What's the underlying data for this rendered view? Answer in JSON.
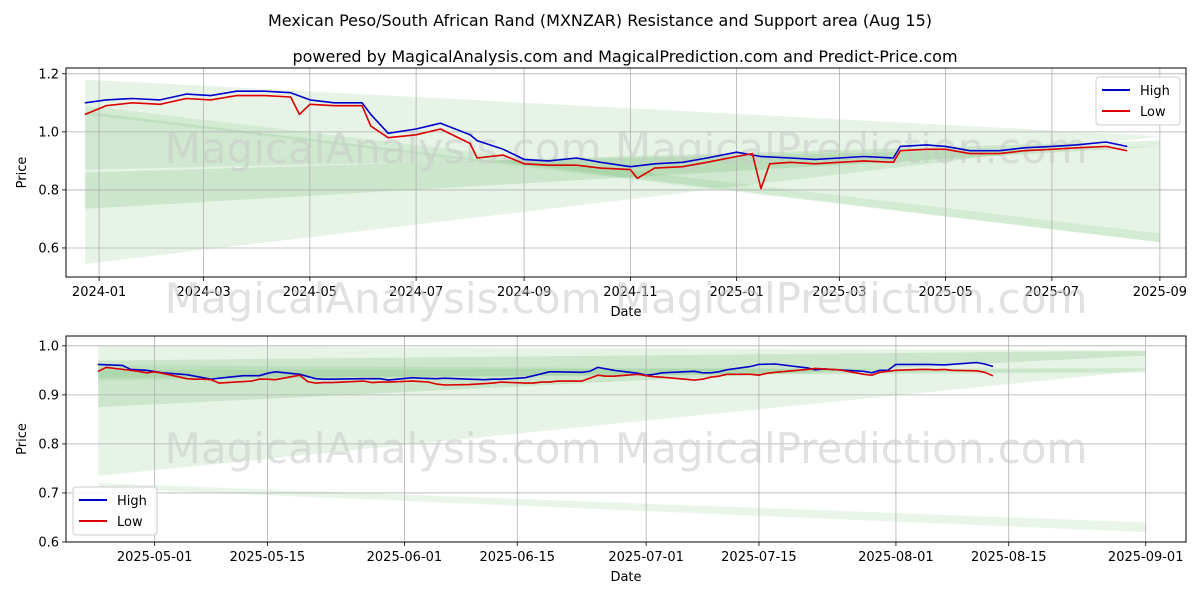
{
  "title": "Mexican Peso/South African Rand (MXNZAR) Resistance and Support area (Aug 15)",
  "subtitle": "powered by MagicalAnalysis.com and MagicalPrediction.com and Predict-Price.com",
  "watermark": "MagicalAnalysis.com    MagicalPrediction.com",
  "colors": {
    "high": "#0000cc",
    "low": "#dd0000",
    "band": "#2e9e2e",
    "grid": "#b0b0b0",
    "watermark": "#c8c8c8"
  },
  "chart_data": [
    {
      "type": "line",
      "title": "",
      "xlabel": "Date",
      "ylabel": "Price",
      "x_range": [
        "2023-12-13",
        "2025-09-16"
      ],
      "ylim": [
        0.5,
        1.22
      ],
      "x_ticks": [
        "2024-01",
        "2024-03",
        "2024-05",
        "2024-07",
        "2024-09",
        "2024-11",
        "2025-01",
        "2025-03",
        "2025-05",
        "2025-07",
        "2025-09"
      ],
      "x_tick_dates": [
        "2024-01-01",
        "2024-03-01",
        "2024-05-01",
        "2024-07-01",
        "2024-09-01",
        "2024-11-01",
        "2025-01-01",
        "2025-03-01",
        "2025-05-01",
        "2025-07-01",
        "2025-09-01"
      ],
      "y_ticks": [
        0.6,
        0.8,
        1.0,
        1.2
      ],
      "y_tick_labels": [
        "0.6",
        "0.8",
        "1.0",
        "1.2"
      ],
      "grid": true,
      "legend": {
        "position": "top-right",
        "entries": [
          "High",
          "Low"
        ]
      },
      "bands": [
        {
          "x0": "2023-12-24",
          "x1": "2025-09-01",
          "y_top": [
            1.18,
            0.985
          ],
          "y_bot": [
            0.545,
            0.985
          ],
          "opacity": 0.12
        },
        {
          "x0": "2023-12-24",
          "x1": "2025-09-01",
          "y_top": [
            1.07,
            0.62
          ],
          "y_bot": [
            0.87,
            0.95
          ],
          "opacity": 0.12
        },
        {
          "x0": "2023-12-24",
          "x1": "2025-09-01",
          "y_top": [
            0.86,
            0.97
          ],
          "y_bot": [
            0.735,
            0.95
          ],
          "opacity": 0.14
        },
        {
          "x0": "2023-12-24",
          "x1": "2025-09-01",
          "y_top": [
            1.09,
            0.65
          ],
          "y_bot": [
            1.06,
            0.62
          ],
          "opacity": 0.1
        }
      ],
      "series": [
        {
          "name": "High",
          "x": [
            "2023-12-24",
            "2024-01-05",
            "2024-01-20",
            "2024-02-05",
            "2024-02-20",
            "2024-03-05",
            "2024-03-20",
            "2024-04-05",
            "2024-04-20",
            "2024-05-01",
            "2024-05-15",
            "2024-05-31",
            "2024-06-05",
            "2024-06-15",
            "2024-07-01",
            "2024-07-15",
            "2024-08-01",
            "2024-08-05",
            "2024-08-20",
            "2024-09-01",
            "2024-09-15",
            "2024-10-01",
            "2024-10-15",
            "2024-11-01",
            "2024-11-15",
            "2024-12-01",
            "2024-12-15",
            "2025-01-01",
            "2025-01-15",
            "2025-02-01",
            "2025-02-15",
            "2025-03-01",
            "2025-03-15",
            "2025-04-01",
            "2025-04-05",
            "2025-04-20",
            "2025-05-01",
            "2025-05-15",
            "2025-06-01",
            "2025-06-15",
            "2025-07-01",
            "2025-07-15",
            "2025-08-01",
            "2025-08-13"
          ],
          "values": [
            1.1,
            1.11,
            1.115,
            1.11,
            1.13,
            1.125,
            1.14,
            1.14,
            1.135,
            1.11,
            1.1,
            1.1,
            1.06,
            0.995,
            1.01,
            1.03,
            0.99,
            0.97,
            0.94,
            0.905,
            0.9,
            0.91,
            0.895,
            0.88,
            0.89,
            0.895,
            0.91,
            0.93,
            0.915,
            0.91,
            0.905,
            0.91,
            0.915,
            0.91,
            0.95,
            0.955,
            0.95,
            0.935,
            0.935,
            0.945,
            0.95,
            0.955,
            0.965,
            0.95
          ]
        },
        {
          "name": "Low",
          "x": [
            "2023-12-24",
            "2024-01-05",
            "2024-01-20",
            "2024-02-05",
            "2024-02-20",
            "2024-03-05",
            "2024-03-20",
            "2024-04-05",
            "2024-04-20",
            "2024-04-25",
            "2024-05-01",
            "2024-05-15",
            "2024-05-31",
            "2024-06-05",
            "2024-06-15",
            "2024-07-01",
            "2024-07-15",
            "2024-08-01",
            "2024-08-05",
            "2024-08-20",
            "2024-09-01",
            "2024-09-15",
            "2024-10-01",
            "2024-10-15",
            "2024-11-01",
            "2024-11-05",
            "2024-11-15",
            "2024-12-01",
            "2024-12-15",
            "2025-01-01",
            "2025-01-10",
            "2025-01-15",
            "2025-01-20",
            "2025-02-01",
            "2025-02-15",
            "2025-03-01",
            "2025-03-15",
            "2025-04-01",
            "2025-04-05",
            "2025-04-20",
            "2025-05-01",
            "2025-05-15",
            "2025-06-01",
            "2025-06-15",
            "2025-07-01",
            "2025-07-15",
            "2025-08-01",
            "2025-08-13"
          ],
          "values": [
            1.06,
            1.09,
            1.1,
            1.095,
            1.115,
            1.11,
            1.125,
            1.125,
            1.12,
            1.06,
            1.095,
            1.09,
            1.09,
            1.02,
            0.98,
            0.99,
            1.01,
            0.96,
            0.91,
            0.92,
            0.89,
            0.885,
            0.885,
            0.875,
            0.87,
            0.84,
            0.875,
            0.88,
            0.895,
            0.915,
            0.925,
            0.805,
            0.89,
            0.895,
            0.89,
            0.895,
            0.9,
            0.895,
            0.935,
            0.94,
            0.94,
            0.925,
            0.925,
            0.935,
            0.94,
            0.945,
            0.95,
            0.935
          ]
        }
      ]
    },
    {
      "type": "line",
      "title": "",
      "xlabel": "Date",
      "ylabel": "Price",
      "x_range": [
        "2025-04-20",
        "2025-09-06"
      ],
      "ylim": [
        0.6,
        1.02
      ],
      "x_ticks": [
        "2025-05-01",
        "2025-05-15",
        "2025-06-01",
        "2025-06-15",
        "2025-07-01",
        "2025-07-15",
        "2025-08-01",
        "2025-08-15",
        "2025-09-01"
      ],
      "y_ticks": [
        0.6,
        0.7,
        0.8,
        0.9,
        1.0
      ],
      "y_tick_labels": [
        "0.6",
        "0.7",
        "0.8",
        "0.9",
        "1.0"
      ],
      "grid": true,
      "legend": {
        "position": "bottom-left",
        "entries": [
          "High",
          "Low"
        ]
      },
      "bands": [
        {
          "x0": "2025-04-24",
          "x1": "2025-09-01",
          "y_top": [
            1.0,
            0.99
          ],
          "y_bot": [
            0.735,
            0.95
          ],
          "opacity": 0.12
        },
        {
          "x0": "2025-04-24",
          "x1": "2025-09-01",
          "y_top": [
            0.97,
            0.99
          ],
          "y_bot": [
            0.875,
            0.98
          ],
          "opacity": 0.14
        },
        {
          "x0": "2025-04-24",
          "x1": "2025-09-01",
          "y_top": [
            0.95,
            0.955
          ],
          "y_bot": [
            0.935,
            0.945
          ],
          "opacity": 0.1
        },
        {
          "x0": "2025-04-24",
          "x1": "2025-09-01",
          "y_top": [
            0.72,
            0.64
          ],
          "y_bot": [
            0.71,
            0.62
          ],
          "opacity": 0.1
        },
        {
          "x0": "2025-04-24",
          "x1": "2025-09-01",
          "y_top": [
            0.96,
            0.95
          ],
          "y_bot": [
            0.93,
            0.95
          ],
          "opacity": 0.1
        }
      ],
      "series": [
        {
          "name": "High",
          "x": [
            "2025-04-24",
            "2025-04-27",
            "2025-04-28",
            "2025-04-29",
            "2025-04-30",
            "2025-05-02",
            "2025-05-05",
            "2025-05-08",
            "2025-05-09",
            "2025-05-12",
            "2025-05-14",
            "2025-05-15",
            "2025-05-16",
            "2025-05-19",
            "2025-05-21",
            "2025-05-22",
            "2025-05-23",
            "2025-05-27",
            "2025-05-29",
            "2025-05-30",
            "2025-06-02",
            "2025-06-03",
            "2025-06-05",
            "2025-06-06",
            "2025-06-09",
            "2025-06-11",
            "2025-06-12",
            "2025-06-13",
            "2025-06-16",
            "2025-06-18",
            "2025-06-19",
            "2025-06-20",
            "2025-06-23",
            "2025-06-24",
            "2025-06-25",
            "2025-06-27",
            "2025-06-30",
            "2025-07-01",
            "2025-07-02",
            "2025-07-03",
            "2025-07-07",
            "2025-07-08",
            "2025-07-09",
            "2025-07-10",
            "2025-07-11",
            "2025-07-14",
            "2025-07-15",
            "2025-07-17",
            "2025-07-21",
            "2025-07-22",
            "2025-07-23",
            "2025-07-24",
            "2025-07-28",
            "2025-07-29",
            "2025-07-30",
            "2025-07-31",
            "2025-08-01",
            "2025-08-04",
            "2025-08-05",
            "2025-08-07",
            "2025-08-11",
            "2025-08-12",
            "2025-08-13"
          ],
          "values": [
            0.962,
            0.96,
            0.952,
            0.951,
            0.95,
            0.945,
            0.941,
            0.932,
            0.934,
            0.939,
            0.939,
            0.944,
            0.947,
            0.942,
            0.933,
            0.932,
            0.932,
            0.933,
            0.933,
            0.93,
            0.935,
            0.934,
            0.933,
            0.934,
            0.932,
            0.931,
            0.932,
            0.932,
            0.935,
            0.943,
            0.947,
            0.947,
            0.946,
            0.948,
            0.956,
            0.95,
            0.944,
            0.94,
            0.942,
            0.945,
            0.948,
            0.945,
            0.945,
            0.947,
            0.951,
            0.958,
            0.962,
            0.963,
            0.955,
            0.951,
            0.953,
            0.952,
            0.948,
            0.945,
            0.95,
            0.95,
            0.962,
            0.962,
            0.962,
            0.961,
            0.966,
            0.963,
            0.958
          ]
        },
        {
          "name": "Low",
          "x": [
            "2025-04-24",
            "2025-04-25",
            "2025-04-28",
            "2025-04-29",
            "2025-04-30",
            "2025-05-01",
            "2025-05-02",
            "2025-05-05",
            "2025-05-06",
            "2025-05-07",
            "2025-05-08",
            "2025-05-09",
            "2025-05-12",
            "2025-05-13",
            "2025-05-14",
            "2025-05-15",
            "2025-05-16",
            "2025-05-19",
            "2025-05-20",
            "2025-05-21",
            "2025-05-22",
            "2025-05-23",
            "2025-05-27",
            "2025-05-28",
            "2025-05-29",
            "2025-05-30",
            "2025-06-02",
            "2025-06-03",
            "2025-06-04",
            "2025-06-05",
            "2025-06-06",
            "2025-06-09",
            "2025-06-10",
            "2025-06-11",
            "2025-06-12",
            "2025-06-13",
            "2025-06-16",
            "2025-06-17",
            "2025-06-18",
            "2025-06-19",
            "2025-06-20",
            "2025-06-23",
            "2025-06-24",
            "2025-06-25",
            "2025-06-26",
            "2025-06-27",
            "2025-06-30",
            "2025-07-01",
            "2025-07-02",
            "2025-07-03",
            "2025-07-07",
            "2025-07-08",
            "2025-07-09",
            "2025-07-10",
            "2025-07-11",
            "2025-07-14",
            "2025-07-15",
            "2025-07-16",
            "2025-07-17",
            "2025-07-21",
            "2025-07-22",
            "2025-07-23",
            "2025-07-24",
            "2025-07-25",
            "2025-07-28",
            "2025-07-29",
            "2025-07-30",
            "2025-07-31",
            "2025-08-01",
            "2025-08-04",
            "2025-08-05",
            "2025-08-06",
            "2025-08-07",
            "2025-08-08",
            "2025-08-11",
            "2025-08-12",
            "2025-08-13"
          ],
          "values": [
            0.948,
            0.956,
            0.95,
            0.948,
            0.945,
            0.947,
            0.944,
            0.933,
            0.932,
            0.932,
            0.931,
            0.924,
            0.927,
            0.928,
            0.932,
            0.932,
            0.931,
            0.94,
            0.927,
            0.924,
            0.925,
            0.925,
            0.928,
            0.925,
            0.926,
            0.926,
            0.928,
            0.927,
            0.926,
            0.922,
            0.92,
            0.921,
            0.922,
            0.923,
            0.924,
            0.926,
            0.924,
            0.924,
            0.926,
            0.926,
            0.928,
            0.928,
            0.934,
            0.94,
            0.938,
            0.938,
            0.942,
            0.939,
            0.937,
            0.936,
            0.93,
            0.932,
            0.936,
            0.938,
            0.942,
            0.942,
            0.94,
            0.944,
            0.946,
            0.952,
            0.954,
            0.953,
            0.952,
            0.951,
            0.942,
            0.94,
            0.946,
            0.948,
            0.95,
            0.952,
            0.952,
            0.951,
            0.952,
            0.95,
            0.949,
            0.946,
            0.939
          ]
        }
      ]
    }
  ]
}
